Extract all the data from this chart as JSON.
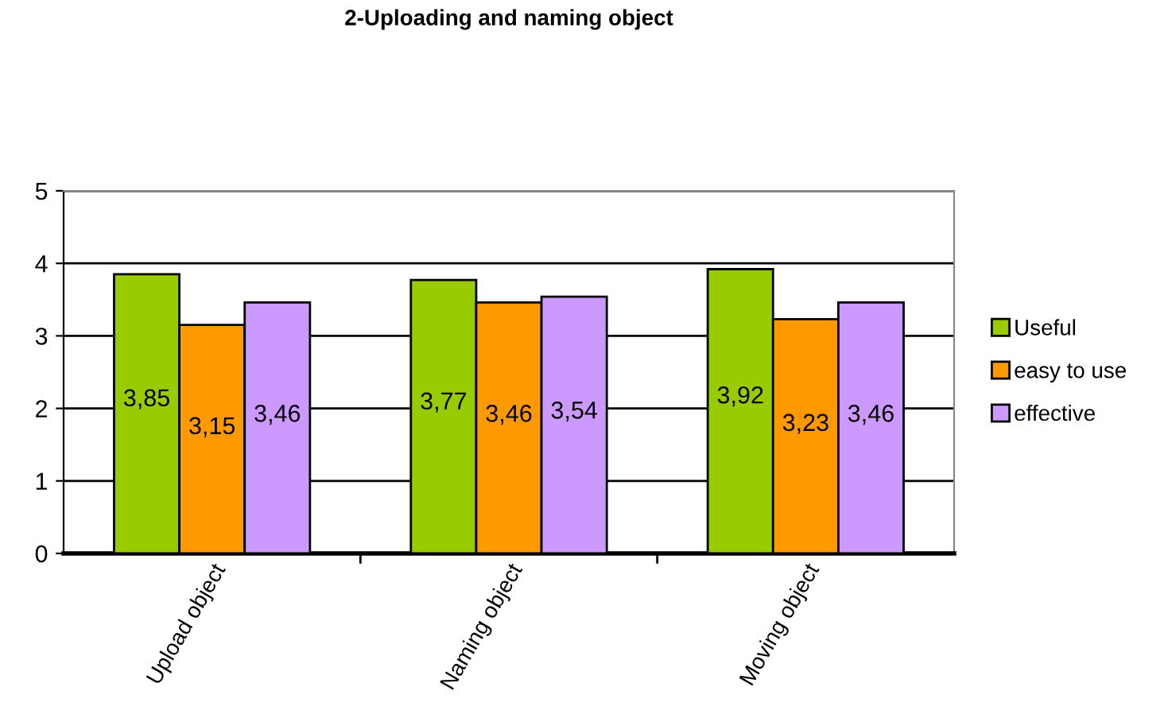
{
  "chart_data": {
    "type": "bar",
    "title": "2-Uploading and naming object",
    "categories": [
      "Upload object",
      "Naming object",
      "Moving object"
    ],
    "series": [
      {
        "name": "Useful",
        "color": "#99cc00",
        "values": [
          3.85,
          3.77,
          3.92
        ],
        "value_labels": [
          "3,85",
          "3,77",
          "3,92"
        ]
      },
      {
        "name": "easy to use",
        "color": "#ff9900",
        "values": [
          3.15,
          3.46,
          3.23
        ],
        "value_labels": [
          "3,15",
          "3,46",
          "3,23"
        ]
      },
      {
        "name": "effective",
        "color": "#cc99ff",
        "values": [
          3.46,
          3.54,
          3.46
        ],
        "value_labels": [
          "3,46",
          "3,54",
          "3,46"
        ]
      }
    ],
    "ylim": [
      0,
      5
    ],
    "yticks": [
      0,
      1,
      2,
      3,
      4,
      5
    ],
    "grid": "y",
    "legend": "right"
  }
}
